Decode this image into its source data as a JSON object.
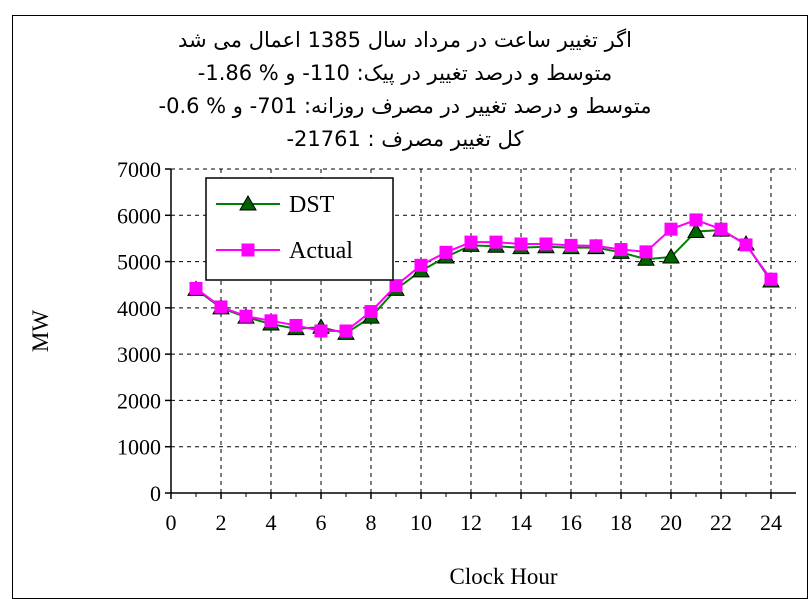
{
  "chart_data": {
    "type": "line",
    "title_lines": [
      "اگر تغيير ساعت در مرداد سال 1385 اعمال مى شد",
      "متوسط و درصد تغيير در پيک: 110- و % 1.86-",
      "متوسط و درصد تغيير در مصرف روزانه: 701- و % 0.6-",
      "کل تغيير مصرف :  21761-"
    ],
    "xlabel": "Clock Hour",
    "ylabel": "MW",
    "xlim": [
      0,
      25
    ],
    "ylim": [
      0,
      7000
    ],
    "x_ticks": [
      0,
      2,
      4,
      6,
      8,
      10,
      12,
      14,
      16,
      18,
      20,
      22,
      24
    ],
    "y_ticks": [
      0,
      1000,
      2000,
      3000,
      4000,
      5000,
      6000,
      7000
    ],
    "grid": true,
    "legend_position": "top-left",
    "x": [
      1,
      2,
      3,
      4,
      5,
      6,
      7,
      8,
      9,
      10,
      11,
      12,
      13,
      14,
      15,
      16,
      17,
      18,
      19,
      20,
      21,
      22,
      23,
      24
    ],
    "series": [
      {
        "name": "DST",
        "marker": "triangle",
        "line_color": "#008000",
        "marker_color": "#006400",
        "values": [
          4400,
          4000,
          3800,
          3650,
          3550,
          3580,
          3450,
          3800,
          4400,
          4800,
          5100,
          5350,
          5330,
          5300,
          5320,
          5300,
          5300,
          5200,
          5050,
          5100,
          5650,
          5680,
          5380,
          4580
        ]
      },
      {
        "name": "Actual",
        "marker": "square",
        "line_color": "#ff00ff",
        "marker_color": "#ff00ff",
        "values": [
          4420,
          4020,
          3820,
          3720,
          3620,
          3500,
          3500,
          3920,
          4480,
          4920,
          5200,
          5420,
          5420,
          5380,
          5380,
          5350,
          5340,
          5260,
          5210,
          5700,
          5900,
          5700,
          5360,
          4620
        ]
      }
    ]
  }
}
